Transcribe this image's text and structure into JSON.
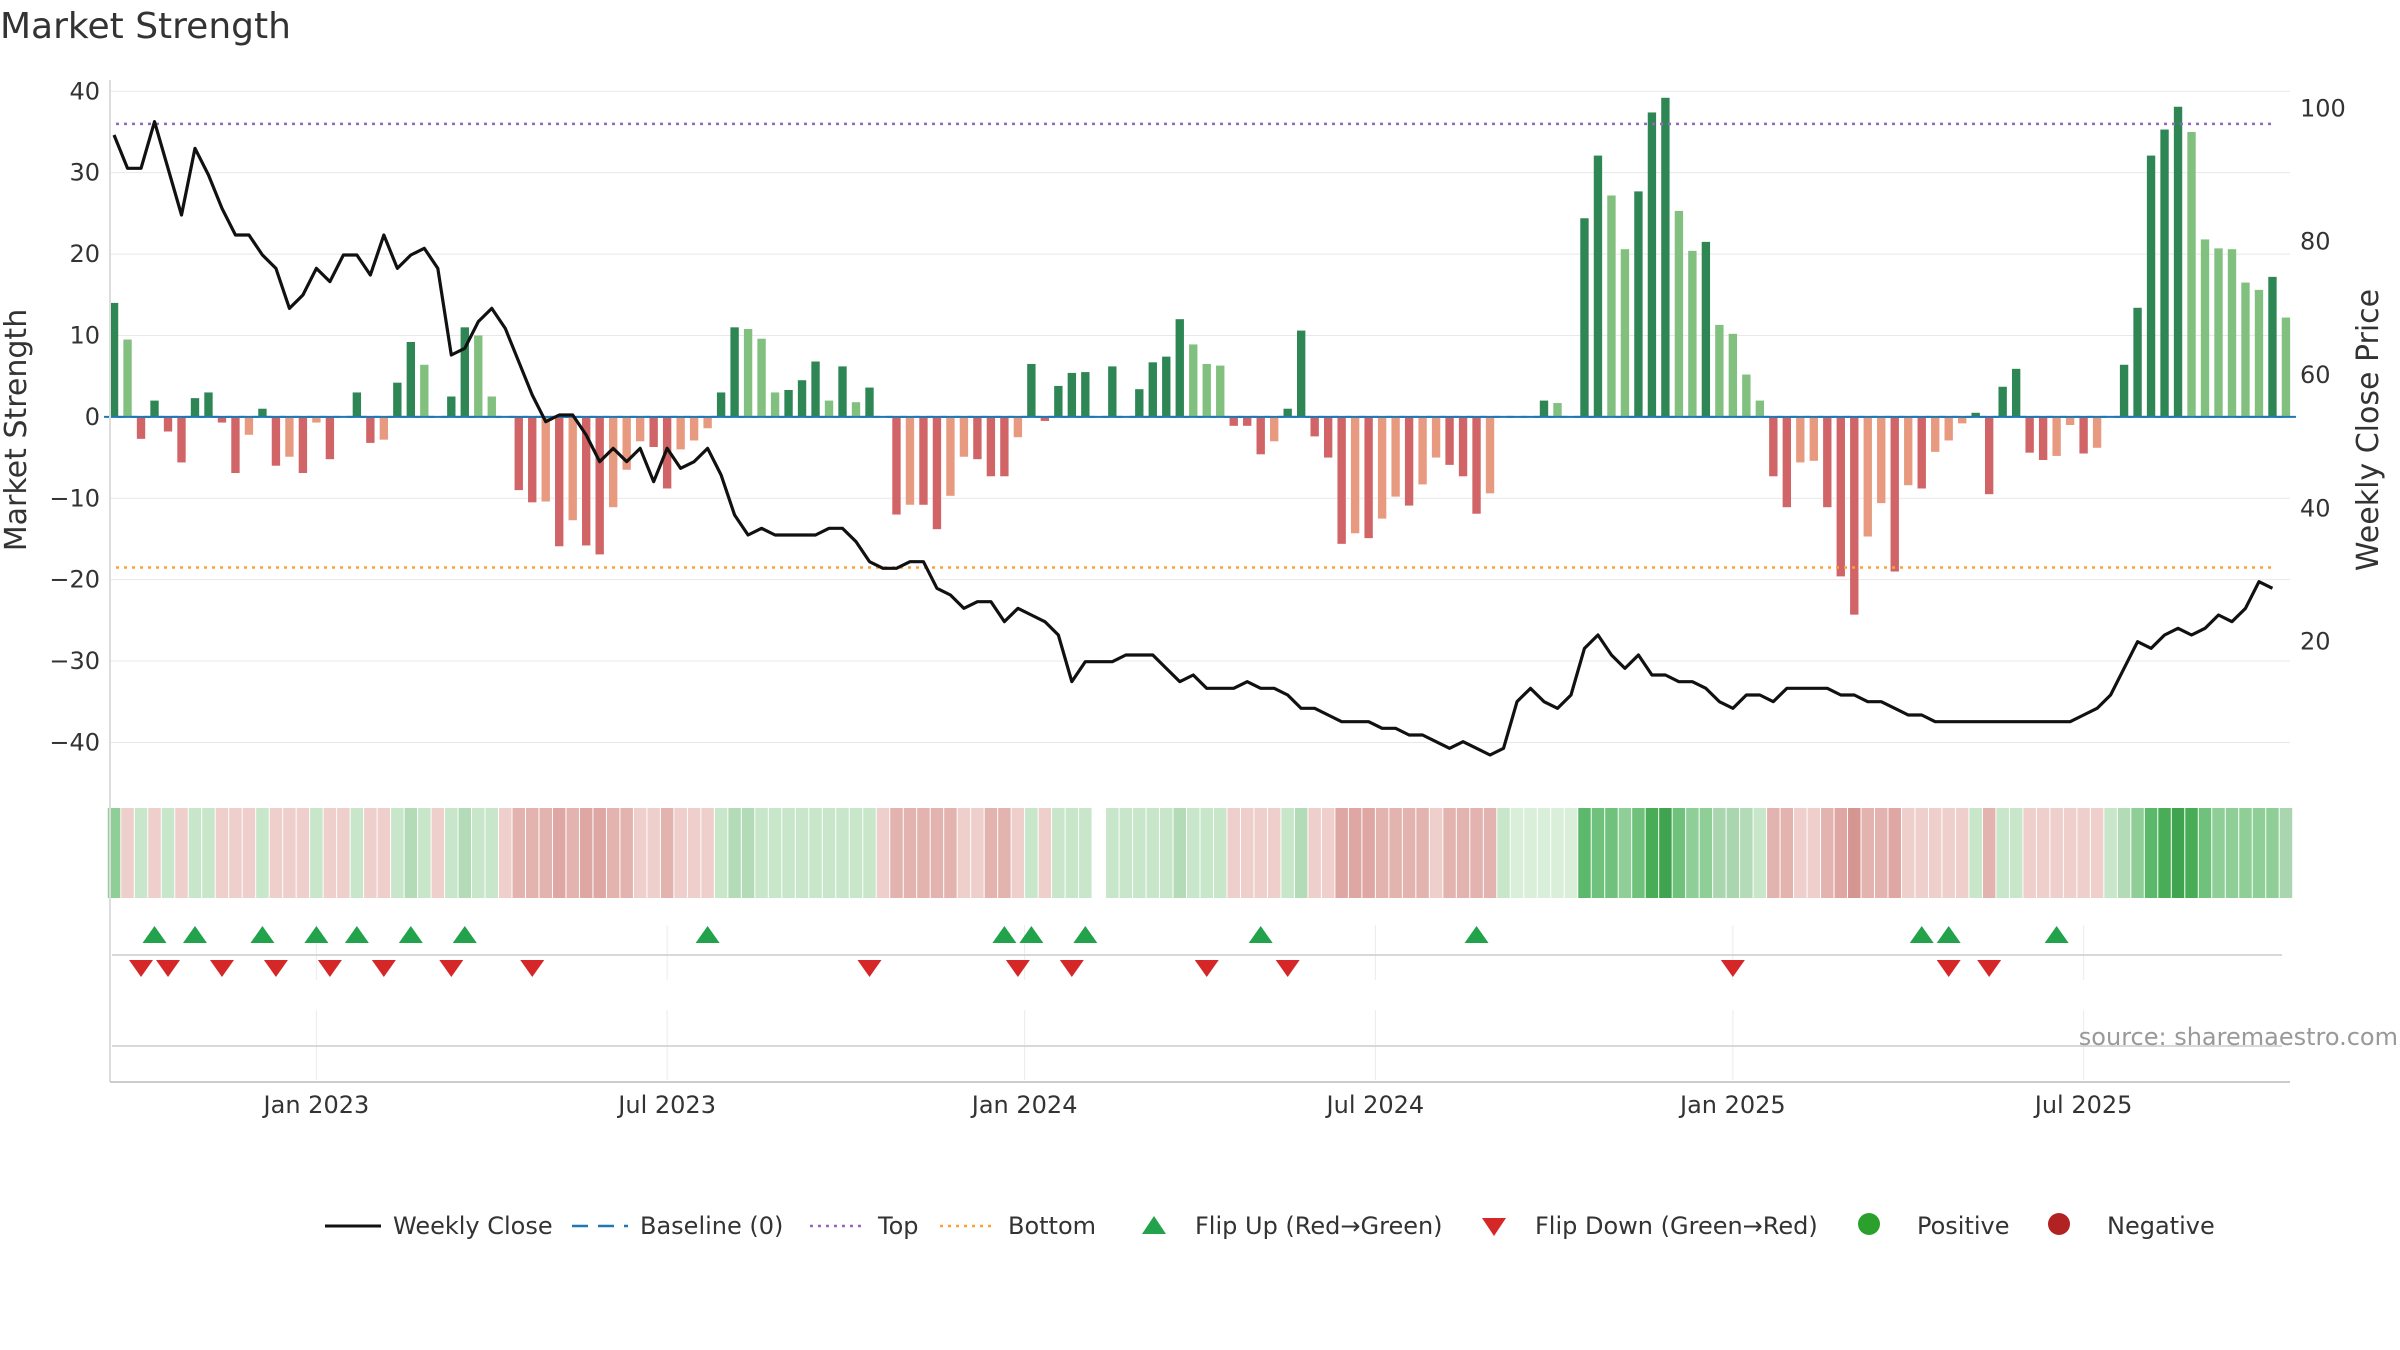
{
  "chart_data": {
    "type": "bar",
    "title": "Market Strength",
    "ylabel": "Market Strength",
    "y2label": "Weekly Close Price",
    "ylim": [
      -44,
      42
    ],
    "y2lim": [
      0,
      105
    ],
    "yticks": [
      40,
      30,
      20,
      10,
      0,
      -10,
      -20,
      -30,
      -40
    ],
    "ytick_labels": [
      "40",
      "30",
      "20",
      "10",
      "0",
      "−10",
      "−20",
      "−30",
      "−40"
    ],
    "y2ticks": [
      100,
      80,
      60,
      40,
      20
    ],
    "y2tick_labels": [
      "100",
      "80",
      "60",
      "40",
      "20"
    ],
    "top_line": 36,
    "bottom_line": -18.5,
    "start_week": 0,
    "x_ticks": [
      {
        "label": "Jan 2023",
        "week": 15
      },
      {
        "label": "Jul 2023",
        "week": 41
      },
      {
        "label": "Jan 2024",
        "week": 67.5
      },
      {
        "label": "Jul 2024",
        "week": 93.5
      },
      {
        "label": "Jan 2025",
        "week": 120
      },
      {
        "label": "Jul 2025",
        "week": 146
      }
    ],
    "strength": [
      14,
      9.5,
      -2.7,
      2,
      -1.8,
      -5.6,
      2.3,
      3,
      -0.7,
      -6.9,
      -2.2,
      1,
      -6,
      -4.9,
      -6.9,
      -0.7,
      -5.2,
      0,
      3,
      -3.2,
      -2.8,
      4.2,
      9.2,
      6.4,
      0,
      2.5,
      11,
      10,
      2.5,
      0,
      -9,
      -10.5,
      -10.4,
      -15.9,
      -12.7,
      -15.8,
      -16.9,
      -11.1,
      -6.5,
      -3,
      -3.7,
      -8.8,
      -4,
      -2.9,
      -1.4,
      3,
      11,
      10.8,
      9.6,
      3,
      3.3,
      4.5,
      6.8,
      2,
      6.2,
      1.8,
      3.6,
      0,
      -12,
      -10.8,
      -10.8,
      -13.8,
      -9.7,
      -4.9,
      -5.2,
      -7.3,
      -7.3,
      -2.5,
      6.5,
      -0.5,
      3.8,
      5.4,
      5.5,
      0,
      6.2,
      0,
      3.4,
      6.7,
      7.4,
      12,
      8.9,
      6.5,
      6.3,
      -1.1,
      -1.1,
      -4.6,
      -3,
      1,
      10.6,
      -2.4,
      -5,
      -15.6,
      -14.3,
      -14.9,
      -12.5,
      -9.8,
      -10.9,
      -8.3,
      -5,
      -5.9,
      -7.3,
      -11.9,
      -9.4,
      0,
      0,
      0,
      2,
      1.7,
      0,
      24.4,
      32.1,
      27.2,
      20.6,
      27.7,
      37.4,
      39.2,
      25.3,
      20.4,
      21.5,
      11.3,
      10.2,
      5.2,
      2,
      -7.3,
      -11.1,
      -5.6,
      -5.4,
      -11.1,
      -19.6,
      -24.3,
      -14.7,
      -10.6,
      -19,
      -8.4,
      -8.8,
      -4.3,
      -2.9,
      -0.8,
      0.5,
      -9.5,
      3.7,
      5.9,
      -4.4,
      -5.3,
      -4.8,
      -1,
      -4.5,
      -3.8,
      0,
      6.4,
      13.4,
      32.1,
      35.3,
      38.1,
      35,
      21.8,
      20.7,
      20.6,
      16.5,
      15.6,
      17.2,
      12.2
    ],
    "price": [
      96,
      91,
      91,
      98,
      91,
      84,
      94,
      90,
      85,
      81,
      81,
      78,
      76,
      70,
      72,
      76,
      74,
      78,
      78,
      75,
      81,
      76,
      78,
      79,
      76,
      63,
      64,
      68,
      70,
      67,
      62,
      57,
      53,
      54,
      54,
      51,
      47,
      49,
      47,
      49,
      44,
      49,
      46,
      47,
      49,
      45,
      39,
      36,
      37,
      36,
      36,
      36,
      36,
      37,
      37,
      35,
      32,
      31,
      31,
      32,
      32,
      28,
      27,
      25,
      26,
      26,
      23,
      25,
      24,
      23,
      21,
      14,
      17,
      17,
      17,
      18,
      18,
      18,
      16,
      14,
      15,
      13,
      13,
      13,
      14,
      13,
      13,
      12,
      10,
      10,
      9,
      8,
      8,
      8,
      7,
      7,
      6,
      6,
      5,
      4,
      5,
      4,
      3,
      4,
      11,
      13,
      11,
      10,
      12,
      19,
      21,
      18,
      16,
      18,
      15,
      15,
      14,
      14,
      13,
      11,
      10,
      12,
      12,
      11,
      13,
      13,
      13,
      13,
      12,
      12,
      11,
      11,
      10,
      9,
      9,
      8,
      8,
      8,
      8,
      8,
      8,
      8,
      8,
      8,
      8,
      8,
      9,
      10,
      12,
      16,
      20,
      19,
      21,
      22,
      21,
      22,
      24,
      23,
      25,
      29,
      28
    ],
    "flip_up_weeks": [
      3,
      6,
      11,
      15,
      18,
      22,
      26,
      44,
      66,
      68,
      72,
      85,
      101,
      134,
      136,
      144
    ],
    "flip_down_weeks": [
      2,
      4,
      8,
      12,
      16,
      20,
      25,
      31,
      56,
      67,
      71,
      81,
      87,
      120,
      136,
      139
    ],
    "regime_colors": [
      "#8fce97",
      "#eecfcc",
      "#c8e6c9",
      "#eecfcc",
      "#c8e6c9",
      "#eecfcc",
      "#c8e6c9",
      "#c8e6c9",
      "#eecfcc",
      "#eecfcc",
      "#eecfcc",
      "#c8e6c9",
      "#eecfcc",
      "#eecfcc",
      "#eecfcc",
      "#c8e6c9",
      "#eecfcc",
      "#eecfcc",
      "#c8e6c9",
      "#eecfcc",
      "#eecfcc",
      "#c8e6c9",
      "#b4dbb8",
      "#c8e6c9",
      "#eecfcc",
      "#c8e6c9",
      "#b4dbb8",
      "#c8e6c9",
      "#c8e6c9",
      "#eecfcc",
      "#e3b3af",
      "#e3b3af",
      "#e3b3af",
      "#dea7a3",
      "#e3b3af",
      "#dea7a3",
      "#dea7a3",
      "#e3b3af",
      "#e3b3af",
      "#eecfcc",
      "#eecfcc",
      "#e3b3af",
      "#eecfcc",
      "#eecfcc",
      "#eecfcc",
      "#c8e6c9",
      "#b4dbb8",
      "#b4dbb8",
      "#c8e6c9",
      "#c8e6c9",
      "#c8e6c9",
      "#c8e6c9",
      "#c8e6c9",
      "#c8e6c9",
      "#c8e6c9",
      "#c8e6c9",
      "#c8e6c9",
      "#eecfcc",
      "#e3b3af",
      "#e3b3af",
      "#e3b3af",
      "#e3b3af",
      "#e3b3af",
      "#eecfcc",
      "#eecfcc",
      "#e3b3af",
      "#e3b3af",
      "#eecfcc",
      "#c8e6c9",
      "#eecfcc",
      "#c8e6c9",
      "#c8e6c9",
      "#c8e6c9",
      "#ffffff",
      "#c8e6c9",
      "#c8e6c9",
      "#c8e6c9",
      "#c8e6c9",
      "#c8e6c9",
      "#b4dbb8",
      "#c8e6c9",
      "#c8e6c9",
      "#c8e6c9",
      "#eecfcc",
      "#eecfcc",
      "#eecfcc",
      "#eecfcc",
      "#c8e6c9",
      "#b4dbb8",
      "#eecfcc",
      "#eecfcc",
      "#dea7a3",
      "#dea7a3",
      "#dea7a3",
      "#e3b3af",
      "#e3b3af",
      "#e3b3af",
      "#e3b3af",
      "#eecfcc",
      "#e3b3af",
      "#e3b3af",
      "#e3b3af",
      "#e3b3af",
      "#c8e6c9",
      "#d9efda",
      "#d9efda",
      "#d9efda",
      "#d9efda",
      "#d9efda",
      "#5cb86a",
      "#6fc17b",
      "#6fc17b",
      "#8fce97",
      "#6fc17b",
      "#49ad58",
      "#3fa34f",
      "#6fc17b",
      "#8fce97",
      "#8fce97",
      "#a9d6ae",
      "#a9d6ae",
      "#b4dbb8",
      "#c8e6c9",
      "#e3b3af",
      "#e3b3af",
      "#eecfcc",
      "#eecfcc",
      "#e3b3af",
      "#dea7a3",
      "#d59591",
      "#e3b3af",
      "#e3b3af",
      "#dea7a3",
      "#eecfcc",
      "#eecfcc",
      "#eecfcc",
      "#eecfcc",
      "#eecfcc",
      "#c8e6c9",
      "#e3b3af",
      "#c8e6c9",
      "#c8e6c9",
      "#eecfcc",
      "#eecfcc",
      "#eecfcc",
      "#eecfcc",
      "#eecfcc",
      "#eecfcc",
      "#c8e6c9",
      "#b4dbb8",
      "#8fce97",
      "#5cb86a",
      "#49ad58",
      "#3fa34f",
      "#49ad58",
      "#6fc17b",
      "#8fce97",
      "#8fce97",
      "#8fce97",
      "#8fce97",
      "#8fce97",
      "#a9d6ae"
    ],
    "colors": {
      "pos_dark": "#2e8655",
      "pos_light": "#82c07f",
      "neg_dark": "#d06466",
      "neg_light": "#e89a80",
      "price_line": "#111111",
      "baseline": "#1f77b4",
      "top": "#9467bd",
      "bottom": "#ff9f3c",
      "flip_up": "#22a24a",
      "flip_down": "#d62728",
      "positive": "#2ca02c",
      "negative": "#b22222"
    },
    "legend": [
      {
        "key": "weekly-close",
        "label": "Weekly Close"
      },
      {
        "key": "baseline",
        "label": "Baseline (0)"
      },
      {
        "key": "top",
        "label": "Top"
      },
      {
        "key": "bottom",
        "label": "Bottom"
      },
      {
        "key": "flip-up",
        "label": "Flip Up (Red→Green)"
      },
      {
        "key": "flip-down",
        "label": "Flip Down (Green→Red)"
      },
      {
        "key": "positive",
        "label": "Positive"
      },
      {
        "key": "negative",
        "label": "Negative"
      }
    ],
    "source": "source: sharemaestro.com"
  }
}
